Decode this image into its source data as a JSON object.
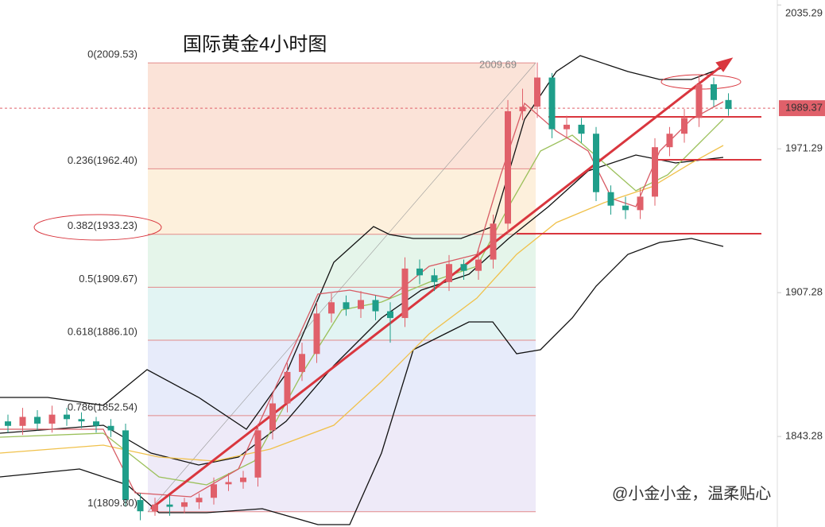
{
  "chart_data": {
    "type": "candlestick",
    "title": "国际黄金4小时图",
    "annotation": "2009.69",
    "watermark": "@小金小金，温柔贴心",
    "current_price": 1989.37,
    "ylim": [
      1803,
      2037.5
    ],
    "yticks": [
      2035.29,
      1971.29,
      1907.28,
      1843.28
    ],
    "grid": false,
    "up_color": "#e0606a",
    "down_color": "#1f9e8a",
    "fib_levels": [
      {
        "label": "0(2009.53)",
        "price": 2009.53,
        "color": "#fbe3d8"
      },
      {
        "label": "0.236(1962.40)",
        "price": 1962.4,
        "color": "#fdf0dc"
      },
      {
        "label": "0.382(1933.23)",
        "price": 1933.23,
        "color": "#e5f5ea"
      },
      {
        "label": "0.5(1909.67)",
        "price": 1909.67,
        "color": "#e2f4f3"
      },
      {
        "label": "0.618(1886.10)",
        "price": 1886.1,
        "color": "#e7ebfa"
      },
      {
        "label": "0.786(1852.54)",
        "price": 1852.54,
        "color": "#eeeaf8"
      },
      {
        "label": "1(1809.80)",
        "price": 1809.8,
        "color": "#eeeaf8"
      }
    ],
    "open": [
      1850,
      1848,
      1852,
      1849,
      1853,
      1851,
      1850,
      1848,
      1846,
      1815,
      1810,
      1813,
      1812,
      1814,
      1816,
      1822,
      1823,
      1825,
      1846,
      1858,
      1872,
      1880,
      1898,
      1903,
      1900,
      1904,
      1899,
      1896,
      1918,
      1915,
      1912,
      1920,
      1917,
      1922,
      1938,
      1988,
      1990,
      2003,
      1980,
      1982,
      1978,
      1952,
      1946,
      1944,
      1950,
      1972,
      1978,
      1985,
      2000,
      1993
    ],
    "close": [
      1848,
      1852,
      1849,
      1853,
      1851,
      1850,
      1848,
      1846,
      1815,
      1810,
      1813,
      1812,
      1814,
      1816,
      1822,
      1823,
      1825,
      1846,
      1858,
      1872,
      1880,
      1898,
      1903,
      1900,
      1904,
      1899,
      1896,
      1918,
      1915,
      1912,
      1920,
      1917,
      1922,
      1938,
      1988,
      1990,
      2003,
      1980,
      1982,
      1978,
      1952,
      1946,
      1944,
      1950,
      1972,
      1978,
      1985,
      2000,
      1993,
      1989
    ],
    "high": [
      1853,
      1856,
      1855,
      1857,
      1856,
      1854,
      1852,
      1851,
      1849,
      1818,
      1816,
      1817,
      1816,
      1818,
      1825,
      1827,
      1828,
      1849,
      1862,
      1876,
      1885,
      1903,
      1907,
      1906,
      1908,
      1906,
      1903,
      1923,
      1922,
      1918,
      1924,
      1922,
      1926,
      1942,
      1993,
      1998,
      2009.69,
      2005,
      1986,
      1985,
      1981,
      1955,
      1950,
      1954,
      1976,
      1981,
      1989,
      2004,
      2003,
      1996
    ],
    "low": [
      1845,
      1844,
      1846,
      1845,
      1848,
      1847,
      1845,
      1843,
      1812,
      1806,
      1808,
      1808,
      1809,
      1811,
      1813,
      1819,
      1820,
      1821,
      1842,
      1854,
      1868,
      1876,
      1894,
      1897,
      1896,
      1895,
      1885,
      1892,
      1911,
      1908,
      1908,
      1913,
      1913,
      1918,
      1934,
      1984,
      1985,
      1976,
      1976,
      1974,
      1948,
      1942,
      1940,
      1940,
      1946,
      1968,
      1974,
      1981,
      1990,
      1986
    ]
  }
}
